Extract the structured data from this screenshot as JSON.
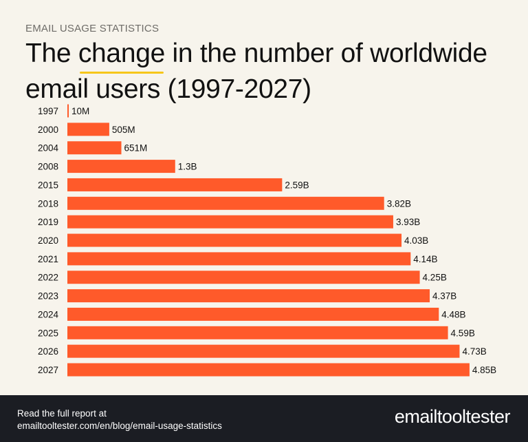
{
  "header": {
    "kicker": "EMAIL USAGE STATISTICS",
    "title_before": "The ",
    "title_highlight": "change",
    "title_after": " in the number of worldwide email users (1997-2027)",
    "highlight_color": "#f6c619"
  },
  "chart_data": {
    "type": "bar",
    "orientation": "horizontal",
    "categories": [
      "1997",
      "2000",
      "2004",
      "2008",
      "2015",
      "2018",
      "2019",
      "2020",
      "2021",
      "2022",
      "2023",
      "2024",
      "2025",
      "2026",
      "2027"
    ],
    "values": [
      0.01,
      0.505,
      0.651,
      1.3,
      2.59,
      3.82,
      3.93,
      4.03,
      4.14,
      4.25,
      4.37,
      4.48,
      4.59,
      4.73,
      4.85
    ],
    "value_unit": "billion users",
    "data_labels": [
      "10M",
      "505M",
      "651M",
      "1.3B",
      "2.59B",
      "3.82B",
      "3.93B",
      "4.03B",
      "4.14B",
      "4.25B",
      "4.37B",
      "4.48B",
      "4.59B",
      "4.73B",
      "4.85B"
    ],
    "bar_color": "#ff5a2a",
    "grid": false,
    "axes_visible": false
  },
  "footer": {
    "line1": "Read the full report at",
    "line2": "emailtooltester.com/en/blog/email-usage-statistics",
    "logo_text": "emailtooltester"
  }
}
